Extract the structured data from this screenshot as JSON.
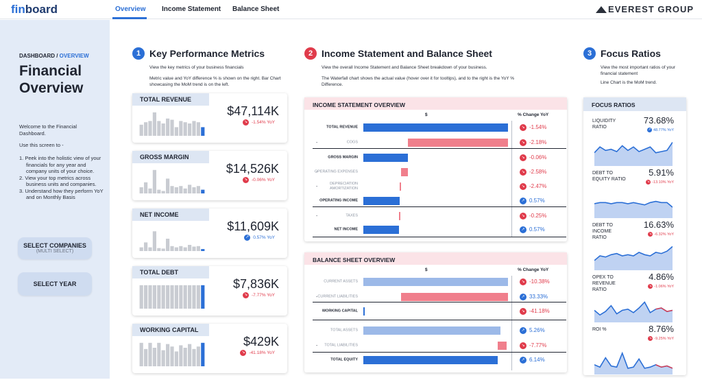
{
  "app": {
    "logo_fin": "fin",
    "logo_board": "board",
    "brand": "EVEREST GROUP"
  },
  "nav": {
    "tabs": [
      {
        "label": "Overview"
      },
      {
        "label": "Income Statement"
      },
      {
        "label": "Balance Sheet"
      }
    ]
  },
  "sidebar": {
    "crumb_root": "DASHBOARD /",
    "crumb_current": " OVERVIEW",
    "title": "Financial Overview",
    "welcome": "Welcome to the Financial Dashboard.",
    "use": "Use this screen to -",
    "steps": [
      "1. Peek into the holistic view of your financials for any year and company units of your choice.",
      "2. View your top metrics across business units and companies.",
      "3. Understand how they perform YoY and on Monthly Basis"
    ],
    "select_companies": "SELECT COMPANIES",
    "select_companies_sub": "(MULTI SELECT)",
    "select_year": "SELECT YEAR"
  },
  "sections": {
    "kpi": {
      "num": "1",
      "title": "Key Performance Metrics",
      "desc1": "View the key metrics of your business financials",
      "desc2": "Metric value and YoY difference % is shown on the right. Bar Chart showcasing the MoM trend is on the left."
    },
    "is": {
      "num": "2",
      "title": "Income Statement and Balance Sheet",
      "desc1": "View the overall Income Statement and Balance Sheet breakdown of your business.",
      "desc2": "The Waterfall chart shows the actual value (hover over it for tooltips), and to the right is the YoY % Difference."
    },
    "focus": {
      "num": "3",
      "title": "Focus Ratios",
      "desc1": "View the most important ratios of your financial statement",
      "desc2": "Line Chart is the MoM trend."
    }
  },
  "kpis": [
    {
      "title": "TOTAL REVENUE",
      "value": "$47,114K",
      "yoy": "-1.54% YoY",
      "dir": "down",
      "trend": [
        0.45,
        0.55,
        0.6,
        0.95,
        0.6,
        0.5,
        0.7,
        0.65,
        0.35,
        0.6,
        0.55,
        0.5,
        0.6,
        0.55,
        0.35
      ]
    },
    {
      "title": "GROSS MARGIN",
      "value": "$14,526K",
      "yoy": "-0.06% YoY",
      "dir": "down",
      "trend": [
        0.25,
        0.45,
        0.2,
        0.95,
        0.15,
        0.1,
        0.6,
        0.3,
        0.25,
        0.3,
        0.2,
        0.35,
        0.25,
        0.3,
        0.15
      ]
    },
    {
      "title": "NET INCOME",
      "value": "$11,609K",
      "yoy": "0.57% YoY",
      "dir": "up",
      "trend": [
        0.15,
        0.35,
        0.15,
        0.8,
        0.12,
        0.1,
        0.5,
        0.2,
        0.15,
        0.2,
        0.15,
        0.25,
        0.18,
        0.2,
        0.08
      ]
    },
    {
      "title": "TOTAL DEBT",
      "value": "$7,836K",
      "yoy": "-7.77% YoY",
      "dir": "down",
      "trend": [
        0.95,
        0.95,
        0.95,
        0.95,
        0.95,
        0.95,
        0.95,
        0.95,
        0.95,
        0.95,
        0.95,
        0.95,
        0.95,
        0.95,
        0.95
      ]
    },
    {
      "title": "WORKING CAPITAL",
      "value": "$429K",
      "yoy": "-41.18% YoY",
      "dir": "down",
      "trend": [
        0.95,
        0.7,
        0.95,
        0.75,
        0.95,
        0.65,
        0.9,
        0.8,
        0.6,
        0.85,
        0.75,
        0.9,
        0.7,
        0.8,
        0.95
      ]
    }
  ],
  "income": {
    "title": "INCOME STATEMENT OVERVIEW",
    "col_value": "$",
    "col_change": "% Change YoY",
    "rows": [
      {
        "label": "TOTAL REVENUE",
        "bold": true,
        "dash": false,
        "start": 0,
        "end": 1,
        "kind": "total",
        "change": "-1.54%",
        "dir": "down"
      },
      {
        "label": "COGS",
        "bold": false,
        "dash": true,
        "start": 0.31,
        "end": 1,
        "kind": "neg",
        "change": "-2.18%",
        "dir": "down"
      },
      {
        "label": "GROSS MARGIN",
        "bold": true,
        "dash": false,
        "start": 0,
        "end": 0.31,
        "kind": "total",
        "change": "-0.06%",
        "dir": "down"
      },
      {
        "label": "OPERATING EXPENSES",
        "bold": false,
        "dash": true,
        "start": 0.26,
        "end": 0.31,
        "kind": "neg",
        "change": "-2.58%",
        "dir": "down"
      },
      {
        "label": "DEPRECIATION AMORTIZATION",
        "bold": false,
        "dash": true,
        "start": 0.25,
        "end": 0.26,
        "kind": "neg",
        "change": "-2.47%",
        "dir": "down"
      },
      {
        "label": "OPERATING INCOME",
        "bold": true,
        "dash": false,
        "start": 0,
        "end": 0.25,
        "kind": "total",
        "change": "0.57%",
        "dir": "up"
      },
      {
        "label": "TAXES",
        "bold": false,
        "dash": true,
        "start": 0.247,
        "end": 0.25,
        "kind": "neg",
        "change": "-0.25%",
        "dir": "down"
      },
      {
        "label": "NET INCOME",
        "bold": true,
        "dash": false,
        "start": 0,
        "end": 0.247,
        "kind": "total",
        "change": "0.57%",
        "dir": "up"
      }
    ]
  },
  "balance": {
    "title": "BALANCE SHEET OVERVIEW",
    "col_value": "$",
    "col_change": "% Change YoY",
    "rows": [
      {
        "label": "CURRENT ASSETS",
        "bold": false,
        "dash": false,
        "start": 0,
        "end": 1,
        "kind": "light",
        "change": "-10.38%",
        "dir": "down"
      },
      {
        "label": "CURRENT LIABILITIES",
        "bold": false,
        "dash": true,
        "start": 0.26,
        "end": 1,
        "kind": "neg",
        "change": "33.33%",
        "dir": "up"
      },
      {
        "label": "WORKING CAPITAL",
        "bold": true,
        "dash": false,
        "start": 0,
        "end": 0.01,
        "kind": "total",
        "change": "-41.18%",
        "dir": "down"
      },
      {
        "label": "TOTAL ASSETS",
        "bold": false,
        "dash": false,
        "start": 0,
        "end": 0.95,
        "kind": "light",
        "change": "5.26%",
        "dir": "up"
      },
      {
        "label": "TOTAL LIABILITIES",
        "bold": false,
        "dash": true,
        "start": 0.93,
        "end": 0.99,
        "kind": "neg",
        "change": "-7.77%",
        "dir": "down"
      },
      {
        "label": "TOTAL EQUITY",
        "bold": true,
        "dash": false,
        "start": 0,
        "end": 0.93,
        "kind": "total",
        "change": "6.14%",
        "dir": "up"
      }
    ]
  },
  "focus": {
    "title": "FOCUS RATIOS",
    "items": [
      {
        "name": "LIQUIDITY RATIO",
        "value": "73.68%",
        "yoy": "48.77% YoY",
        "dir": "up",
        "trend": [
          0.45,
          0.7,
          0.55,
          0.6,
          0.5,
          0.75,
          0.55,
          0.7,
          0.5,
          0.6,
          0.7,
          0.45,
          0.5,
          0.55,
          0.9
        ]
      },
      {
        "name": "DEBT TO EQUITY RATIO",
        "value": "5.91%",
        "yoy": "-13.10% YoY",
        "dir": "down",
        "trend": [
          0.5,
          0.55,
          0.55,
          0.5,
          0.55,
          0.55,
          0.5,
          0.55,
          0.5,
          0.45,
          0.55,
          0.6,
          0.55,
          0.55,
          0.35
        ]
      },
      {
        "name": "DEBT TO INCOME RATIO",
        "value": "16.63%",
        "yoy": "-6.32% YoY",
        "dir": "down",
        "trend": [
          0.3,
          0.5,
          0.45,
          0.55,
          0.6,
          0.5,
          0.55,
          0.5,
          0.65,
          0.55,
          0.5,
          0.65,
          0.6,
          0.7,
          0.9
        ]
      },
      {
        "name": "OPEX TO REVENUE RATIO",
        "value": "4.86%",
        "yoy": "-1.06% YoY",
        "dir": "down",
        "trend": [
          0.4,
          0.2,
          0.35,
          0.6,
          0.25,
          0.4,
          0.45,
          0.3,
          0.5,
          0.75,
          0.3,
          0.45,
          0.5,
          0.35,
          0.4
        ]
      },
      {
        "name": "ROI %",
        "value": "8.76%",
        "yoy": "-9.25% YoY",
        "dir": "down",
        "trend": [
          0.3,
          0.2,
          0.6,
          0.25,
          0.2,
          0.8,
          0.15,
          0.2,
          0.55,
          0.15,
          0.2,
          0.3,
          0.2,
          0.25,
          0.15
        ]
      }
    ]
  },
  "colors": {
    "blue": "#2b6fd6",
    "light_blue": "#9cb9e8",
    "red": "#e03b4b",
    "pink": "#f07f8c",
    "grey_bar": "#c9ccd2",
    "line_fill": "#bfd2f2"
  }
}
